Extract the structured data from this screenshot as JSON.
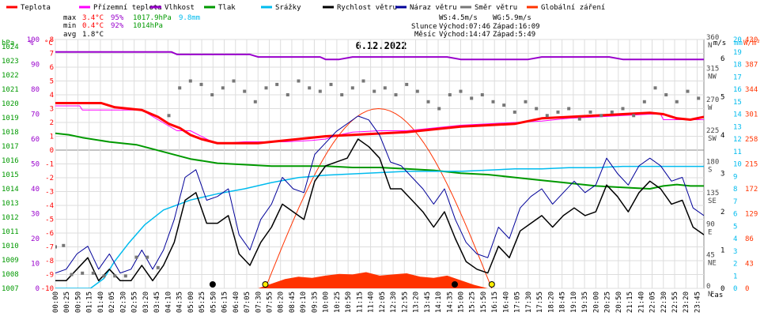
{
  "chart_data": {
    "type": "line",
    "title": "6.12.2022",
    "xlabel": "čas",
    "legend": [
      {
        "name": "Teplota",
        "color": "#ff0000"
      },
      {
        "name": "Přízemní teplota",
        "color": "#ff00ff"
      },
      {
        "name": "Vlhkost",
        "color": "#9900cc"
      },
      {
        "name": "Tlak",
        "color": "#009900"
      },
      {
        "name": "Srážky",
        "color": "#00bbee"
      },
      {
        "name": "Rychlost větru",
        "color": "#000000"
      },
      {
        "name": "Náraz větru",
        "color": "#000099"
      },
      {
        "name": "Směr větru",
        "color": "#777777"
      },
      {
        "name": "Globální záření",
        "color": "#ff3300"
      }
    ],
    "stats": {
      "max": {
        "label": "max",
        "temp": "3.4°C",
        "hum": "95%",
        "press": "1017.9hPa",
        "rain": "9.8mm"
      },
      "min": {
        "label": "min",
        "temp": "0.4°C",
        "hum": "92%",
        "press": "1014hPa"
      },
      "avg": {
        "label": "avg",
        "temp": "1.8°C"
      }
    },
    "info": {
      "ws": "WS:4.5m/s",
      "wg": "WG:5.9m/s",
      "sun_label": "Slunce",
      "sun_rise": "Východ:07:46",
      "sun_set": "Západ:16:09",
      "moon_label": "Měsíc",
      "moon_rise": "Východ:14:47",
      "moon_set": "Západ:5:49"
    },
    "axes": {
      "hpa_unit": "hPa",
      "hpa_ticks": [
        1007,
        1008,
        1009,
        1010,
        1011,
        1012,
        1013,
        1014,
        1015,
        1016,
        1017,
        1018,
        1019,
        1020,
        1021,
        1022,
        1023,
        1024
      ],
      "pct_unit": "%",
      "pct_ticks": [
        0,
        10,
        20,
        30,
        40,
        50,
        60,
        70,
        80,
        90,
        100
      ],
      "temp_unit": "°C",
      "temp_ticks": [
        -10,
        -9,
        -8,
        -7,
        -6,
        -5,
        -4,
        -3,
        -2,
        -1,
        0,
        1,
        2,
        3,
        4,
        5,
        6,
        7,
        8
      ],
      "dir_ticks": [
        "0 N",
        "45 NE",
        "90 E",
        "135 SE",
        "180 S",
        "225 SW",
        "270 W",
        "315 NW",
        "360 N"
      ],
      "ms_unit": "m/s",
      "ms_ticks": [
        0,
        1,
        2,
        3,
        4,
        5,
        6
      ],
      "mm_unit": "mm",
      "mm_ticks": [
        0,
        1,
        2,
        3,
        4,
        5,
        6,
        7,
        8,
        9,
        10,
        11,
        12,
        13,
        14,
        15,
        16,
        17,
        18,
        19,
        20
      ],
      "wm2_unit": "W/m²",
      "wm2_ticks": [
        0,
        43,
        86,
        129,
        172,
        215,
        258,
        301,
        344,
        387,
        430
      ],
      "x_ticks": [
        "00:00",
        "00:25",
        "00:50",
        "01:15",
        "01:40",
        "02:05",
        "02:30",
        "02:55",
        "03:20",
        "03:45",
        "04:10",
        "04:35",
        "05:00",
        "05:25",
        "05:50",
        "06:15",
        "06:40",
        "07:05",
        "07:30",
        "07:55",
        "08:20",
        "08:45",
        "09:10",
        "09:35",
        "10:00",
        "10:25",
        "10:50",
        "11:15",
        "11:40",
        "12:05",
        "12:30",
        "12:55",
        "13:20",
        "13:45",
        "14:10",
        "14:35",
        "15:00",
        "15:25",
        "15:50",
        "16:15",
        "16:40",
        "17:05",
        "17:30",
        "17:55",
        "18:20",
        "18:45",
        "19:10",
        "19:35",
        "20:00",
        "20:25",
        "20:50",
        "21:15",
        "21:40",
        "22:05",
        "22:30",
        "22:55",
        "23:20",
        "23:45"
      ]
    },
    "series": [
      {
        "name": "Teplota",
        "unit": "°C",
        "x_hours": [
          0,
          0.5,
          1.7,
          2.2,
          3.2,
          3.8,
          4.2,
          4.6,
          5.0,
          5.4,
          5.8,
          6.0,
          6.5,
          7.5,
          8.0,
          8.5,
          9.0,
          9.5,
          10.0,
          11.0,
          12.0,
          13.0,
          14.0,
          15.0,
          16.0,
          17.0,
          18.0,
          19.0,
          20.0,
          21.0,
          22.0,
          22.5,
          23.0,
          23.5,
          24.0
        ],
        "values": [
          3.4,
          3.4,
          3.4,
          3.1,
          2.9,
          2.4,
          1.9,
          1.6,
          1.1,
          0.8,
          0.6,
          0.5,
          0.5,
          0.5,
          0.6,
          0.7,
          0.8,
          0.9,
          1.0,
          1.1,
          1.2,
          1.3,
          1.5,
          1.7,
          1.8,
          1.9,
          2.3,
          2.4,
          2.5,
          2.6,
          2.7,
          2.6,
          2.3,
          2.2,
          2.4
        ]
      },
      {
        "name": "Přízemní teplota",
        "unit": "°C",
        "x_hours": [
          0,
          0.9,
          1.0,
          3.2,
          3.8,
          4.5,
          5.0,
          5.8,
          6.2,
          7.0,
          8.5,
          9.5,
          10.0,
          10.5,
          11.0,
          12.0,
          13.0,
          14.0,
          15.0,
          16.0,
          17.0,
          18.0,
          19.0,
          20.0,
          21.0,
          22.0,
          22.4,
          22.5,
          24.0
        ],
        "values": [
          3.2,
          3.2,
          2.9,
          2.9,
          2.2,
          1.4,
          1.4,
          0.6,
          0.5,
          0.6,
          0.6,
          0.7,
          0.8,
          1.1,
          1.3,
          1.4,
          1.4,
          1.6,
          1.8,
          1.9,
          2.0,
          2.1,
          2.3,
          2.4,
          2.5,
          2.6,
          2.6,
          2.2,
          2.2
        ]
      },
      {
        "name": "Vlhkost",
        "unit": "%",
        "x_hours": [
          0,
          4.3,
          4.5,
          5.2,
          7.2,
          7.5,
          8.0,
          9.8,
          10.0,
          10.5,
          11.0,
          12.0,
          14.5,
          15.0,
          16.0,
          17.5,
          18.0,
          19.0,
          20.5,
          21.0,
          21.5,
          22.0,
          24.0
        ],
        "values": [
          95,
          95,
          94,
          94,
          94,
          93,
          93,
          93,
          92,
          92,
          93,
          93,
          93,
          92,
          92,
          92,
          93,
          93,
          93,
          92,
          92,
          92,
          92
        ]
      },
      {
        "name": "Tlak",
        "unit": "hPa",
        "x_hours": [
          0,
          0.5,
          1.0,
          2.0,
          3.0,
          4.0,
          5.0,
          6.0,
          7.0,
          8.0,
          9.0,
          10.0,
          11.0,
          12.0,
          13.0,
          14.0,
          15.0,
          16.0,
          17.0,
          18.0,
          19.0,
          20.0,
          21.0,
          22.0,
          22.5,
          23.0,
          23.5,
          24.0
        ],
        "values": [
          1017.9,
          1017.8,
          1017.6,
          1017.3,
          1017.1,
          1016.6,
          1016.1,
          1015.8,
          1015.7,
          1015.6,
          1015.6,
          1015.6,
          1015.5,
          1015.5,
          1015.4,
          1015.3,
          1015.1,
          1015.0,
          1014.8,
          1014.6,
          1014.4,
          1014.2,
          1014.1,
          1014.0,
          1014.2,
          1014.3,
          1014.2,
          1014.2
        ]
      },
      {
        "name": "Srážky",
        "unit": "mm",
        "x_hours": [
          0,
          1.3,
          1.8,
          2.2,
          2.7,
          3.3,
          4.0,
          5.0,
          6.0,
          7.0,
          8.0,
          9.0,
          10.0,
          11.0,
          12.0,
          13.0,
          14.0,
          15.0,
          16.0,
          17.0,
          18.0,
          19.0,
          20.0,
          21.0,
          22.0,
          23.0,
          24.0
        ],
        "values": [
          0,
          0,
          0.8,
          2.2,
          3.6,
          5.1,
          6.3,
          7.1,
          7.6,
          8.0,
          8.5,
          8.9,
          9.1,
          9.2,
          9.3,
          9.4,
          9.4,
          9.4,
          9.5,
          9.6,
          9.6,
          9.7,
          9.7,
          9.8,
          9.8,
          9.8,
          9.8
        ]
      },
      {
        "name": "Rychlost větru",
        "unit": "m/s",
        "x_hours": [
          0,
          0.4,
          0.8,
          1.2,
          1.6,
          2.0,
          2.4,
          2.8,
          3.2,
          3.6,
          4.0,
          4.4,
          4.8,
          5.2,
          5.6,
          6.0,
          6.4,
          6.8,
          7.2,
          7.6,
          8.0,
          8.4,
          8.8,
          9.2,
          9.6,
          10.0,
          10.4,
          10.8,
          11.2,
          11.6,
          12.0,
          12.4,
          12.8,
          13.2,
          13.6,
          14.0,
          14.4,
          14.8,
          15.2,
          15.6,
          16.0,
          16.4,
          16.8,
          17.2,
          17.6,
          18.0,
          18.4,
          18.8,
          19.2,
          19.6,
          20.0,
          20.4,
          20.8,
          21.2,
          21.6,
          22.0,
          22.4,
          22.8,
          23.2,
          23.6,
          24.0
        ],
        "values": [
          0.2,
          0.2,
          0.5,
          0.8,
          0.2,
          0.5,
          0.2,
          0.2,
          0.6,
          0.2,
          0.6,
          1.2,
          2.3,
          2.5,
          1.7,
          1.7,
          1.9,
          0.9,
          0.6,
          1.2,
          1.6,
          2.2,
          2.0,
          1.8,
          2.8,
          3.2,
          3.3,
          3.4,
          3.9,
          3.7,
          3.4,
          2.6,
          2.6,
          2.3,
          2.0,
          1.6,
          2.0,
          1.3,
          0.7,
          0.5,
          0.4,
          1.1,
          0.8,
          1.5,
          1.7,
          1.9,
          1.6,
          1.9,
          2.1,
          1.9,
          2.0,
          2.7,
          2.4,
          2.0,
          2.5,
          2.8,
          2.6,
          2.2,
          2.3,
          1.6,
          1.4
        ]
      },
      {
        "name": "Náraz větru",
        "unit": "m/s",
        "x_hours": [
          0,
          0.4,
          0.8,
          1.2,
          1.6,
          2.0,
          2.4,
          2.8,
          3.2,
          3.6,
          4.0,
          4.4,
          4.8,
          5.2,
          5.6,
          6.0,
          6.4,
          6.8,
          7.2,
          7.6,
          8.0,
          8.4,
          8.8,
          9.2,
          9.6,
          10.0,
          10.4,
          10.8,
          11.2,
          11.6,
          12.0,
          12.4,
          12.8,
          13.2,
          13.6,
          14.0,
          14.4,
          14.8,
          15.2,
          15.6,
          16.0,
          16.4,
          16.8,
          17.2,
          17.6,
          18.0,
          18.4,
          18.8,
          19.2,
          19.6,
          20.0,
          20.4,
          20.8,
          21.2,
          21.6,
          22.0,
          22.4,
          22.8,
          23.2,
          23.6,
          24.0
        ],
        "values": [
          0.4,
          0.5,
          0.9,
          1.1,
          0.5,
          0.9,
          0.4,
          0.5,
          1.0,
          0.5,
          1.0,
          1.8,
          2.9,
          3.1,
          2.3,
          2.4,
          2.6,
          1.4,
          1.0,
          1.8,
          2.2,
          2.9,
          2.6,
          2.5,
          3.5,
          3.8,
          4.1,
          4.3,
          4.5,
          4.4,
          4.0,
          3.3,
          3.2,
          2.9,
          2.6,
          2.2,
          2.6,
          1.8,
          1.2,
          0.9,
          0.8,
          1.6,
          1.3,
          2.1,
          2.4,
          2.6,
          2.2,
          2.5,
          2.8,
          2.5,
          2.7,
          3.4,
          3.0,
          2.7,
          3.2,
          3.4,
          3.2,
          2.8,
          2.9,
          2.1,
          1.9
        ]
      },
      {
        "name": "Směr větru",
        "unit": "°",
        "x_hours": [
          0,
          0.3,
          0.6,
          1.0,
          1.4,
          1.8,
          2.2,
          2.6,
          3.0,
          3.4,
          3.8,
          4.2,
          4.6,
          5.0,
          5.4,
          5.8,
          6.2,
          6.6,
          7.0,
          7.4,
          7.8,
          8.2,
          8.6,
          9.0,
          9.4,
          9.8,
          10.2,
          10.6,
          11.0,
          11.4,
          11.8,
          12.2,
          12.6,
          13.0,
          13.4,
          13.8,
          14.2,
          14.6,
          15.0,
          15.4,
          15.8,
          16.2,
          16.6,
          17.0,
          17.4,
          17.8,
          18.2,
          18.6,
          19.0,
          19.4,
          19.8,
          20.2,
          20.6,
          21.0,
          21.4,
          21.8,
          22.2,
          22.6,
          23.0,
          23.4,
          23.8
        ],
        "values": [
          60,
          62,
          20,
          22,
          22,
          18,
          18,
          18,
          45,
          45,
          30,
          250,
          290,
          300,
          295,
          280,
          290,
          300,
          285,
          270,
          290,
          295,
          280,
          300,
          290,
          285,
          295,
          280,
          290,
          300,
          285,
          290,
          280,
          295,
          285,
          270,
          260,
          280,
          285,
          275,
          280,
          270,
          265,
          255,
          270,
          260,
          250,
          255,
          260,
          245,
          255,
          250,
          255,
          260,
          250,
          270,
          290,
          280,
          270,
          285,
          275
        ]
      },
      {
        "name": "Globální záření",
        "unit": "W/m²",
        "x_hours": [
          7.5,
          8.0,
          8.5,
          9.0,
          9.5,
          10.0,
          10.5,
          11.0,
          11.5,
          12.0,
          12.5,
          13.0,
          13.5,
          14.0,
          14.5,
          15.0,
          15.5,
          16.0
        ],
        "values": [
          0,
          8,
          16,
          20,
          18,
          22,
          25,
          24,
          28,
          22,
          24,
          26,
          20,
          18,
          22,
          14,
          6,
          0
        ]
      }
    ],
    "markers": [
      {
        "name": "Měsíc západ",
        "x_hour": 5.82,
        "color": "#000000"
      },
      {
        "name": "Slunce východ",
        "x_hour": 7.77,
        "color": "#ffee00"
      },
      {
        "name": "Měsíc východ",
        "x_hour": 14.78,
        "color": "#000000"
      },
      {
        "name": "Slunce západ",
        "x_hour": 16.15,
        "color": "#ffee00"
      }
    ]
  }
}
